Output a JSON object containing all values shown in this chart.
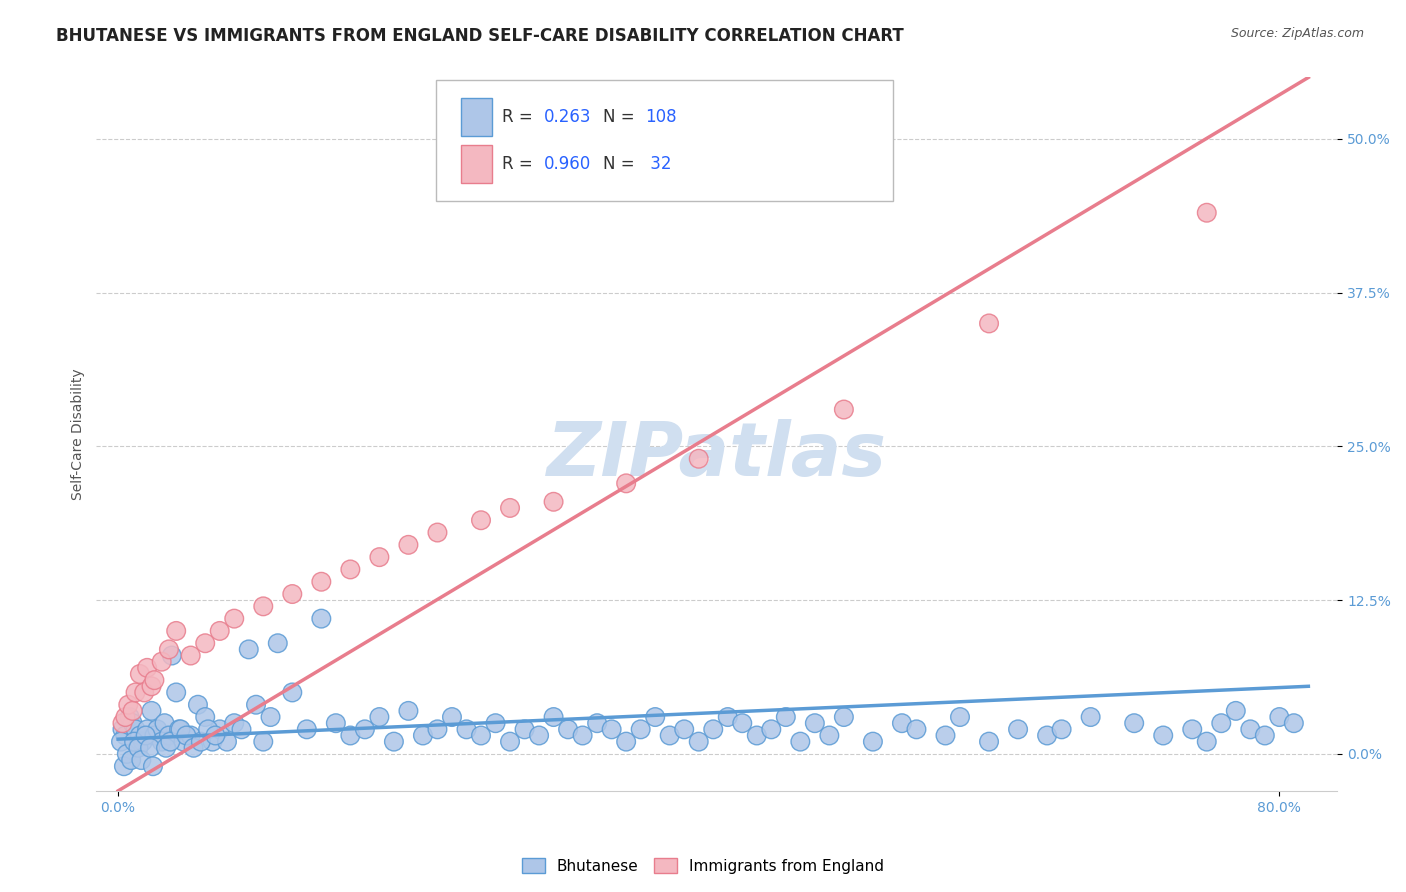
{
  "title": "BHUTANESE VS IMMIGRANTS FROM ENGLAND SELF-CARE DISABILITY CORRELATION CHART",
  "source": "Source: ZipAtlas.com",
  "ylabel": "Self-Care Disability",
  "ytick_labels": [
    "0.0%",
    "12.5%",
    "25.0%",
    "37.5%",
    "50.0%"
  ],
  "ytick_values": [
    0.0,
    12.5,
    25.0,
    37.5,
    50.0
  ],
  "xtick_labels": [
    "0.0%",
    "80.0%"
  ],
  "xtick_values": [
    0.0,
    80.0
  ],
  "xlim": [
    -1.5,
    84.0
  ],
  "ylim": [
    -3.0,
    55.0
  ],
  "blue_edge": "#5b9bd5",
  "pink_edge": "#e87d8d",
  "blue_fill": "#aec6e8",
  "pink_fill": "#f4b8c1",
  "grid_color": "#cccccc",
  "watermark": "ZIPatlas",
  "watermark_color": "#d0dff0",
  "title_fontsize": 12,
  "axis_label_fontsize": 10,
  "tick_fontsize": 10,
  "legend_R_color": "#333333",
  "legend_N_color": "#2962ff",
  "blue_scatter_x": [
    0.3,
    0.5,
    0.8,
    1.0,
    1.2,
    1.5,
    1.7,
    2.0,
    2.3,
    2.5,
    2.7,
    3.0,
    3.2,
    3.5,
    3.7,
    4.0,
    4.2,
    4.5,
    5.0,
    5.5,
    6.0,
    6.5,
    7.0,
    7.5,
    8.0,
    8.5,
    9.0,
    9.5,
    10.0,
    10.5,
    11.0,
    12.0,
    13.0,
    14.0,
    15.0,
    16.0,
    17.0,
    18.0,
    19.0,
    20.0,
    21.0,
    22.0,
    23.0,
    24.0,
    25.0,
    26.0,
    27.0,
    28.0,
    29.0,
    30.0,
    31.0,
    32.0,
    33.0,
    34.0,
    35.0,
    36.0,
    37.0,
    38.0,
    39.0,
    40.0,
    41.0,
    42.0,
    43.0,
    44.0,
    45.0,
    46.0,
    47.0,
    48.0,
    49.0,
    50.0,
    52.0,
    54.0,
    55.0,
    57.0,
    58.0,
    60.0,
    62.0,
    64.0,
    65.0,
    67.0,
    70.0,
    72.0,
    74.0,
    75.0,
    76.0,
    77.0,
    78.0,
    79.0,
    80.0,
    81.0,
    0.2,
    0.4,
    0.6,
    0.9,
    1.1,
    1.4,
    1.6,
    1.9,
    2.2,
    2.4,
    3.3,
    3.6,
    4.3,
    4.7,
    5.2,
    5.7,
    6.2,
    6.7
  ],
  "blue_scatter_y": [
    2.0,
    1.5,
    3.0,
    2.5,
    2.0,
    1.5,
    1.0,
    2.0,
    3.5,
    1.5,
    2.0,
    1.0,
    2.5,
    1.5,
    8.0,
    5.0,
    2.0,
    1.0,
    1.5,
    4.0,
    3.0,
    1.0,
    2.0,
    1.0,
    2.5,
    2.0,
    8.5,
    4.0,
    1.0,
    3.0,
    9.0,
    5.0,
    2.0,
    11.0,
    2.5,
    1.5,
    2.0,
    3.0,
    1.0,
    3.5,
    1.5,
    2.0,
    3.0,
    2.0,
    1.5,
    2.5,
    1.0,
    2.0,
    1.5,
    3.0,
    2.0,
    1.5,
    2.5,
    2.0,
    1.0,
    2.0,
    3.0,
    1.5,
    2.0,
    1.0,
    2.0,
    3.0,
    2.5,
    1.5,
    2.0,
    3.0,
    1.0,
    2.5,
    1.5,
    3.0,
    1.0,
    2.5,
    2.0,
    1.5,
    3.0,
    1.0,
    2.0,
    1.5,
    2.0,
    3.0,
    2.5,
    1.5,
    2.0,
    1.0,
    2.5,
    3.5,
    2.0,
    1.5,
    3.0,
    2.5,
    1.0,
    -1.0,
    0.0,
    -0.5,
    1.0,
    0.5,
    -0.5,
    1.5,
    0.5,
    -1.0,
    0.5,
    1.0,
    2.0,
    1.5,
    0.5,
    1.0,
    2.0,
    1.5
  ],
  "pink_scatter_x": [
    0.3,
    0.5,
    0.7,
    1.0,
    1.2,
    1.5,
    1.8,
    2.0,
    2.3,
    2.5,
    3.0,
    3.5,
    4.0,
    5.0,
    6.0,
    7.0,
    8.0,
    10.0,
    12.0,
    14.0,
    16.0,
    18.0,
    20.0,
    22.0,
    25.0,
    27.0,
    30.0,
    35.0,
    40.0,
    50.0,
    60.0,
    75.0
  ],
  "pink_scatter_y": [
    2.5,
    3.0,
    4.0,
    3.5,
    5.0,
    6.5,
    5.0,
    7.0,
    5.5,
    6.0,
    7.5,
    8.5,
    10.0,
    8.0,
    9.0,
    10.0,
    11.0,
    12.0,
    13.0,
    14.0,
    15.0,
    16.0,
    17.0,
    18.0,
    19.0,
    20.0,
    20.5,
    22.0,
    24.0,
    28.0,
    35.0,
    44.0
  ],
  "blue_line_x": [
    0.0,
    82.0
  ],
  "blue_line_y": [
    1.2,
    5.5
  ],
  "pink_line_x": [
    0.0,
    82.0
  ],
  "pink_line_y": [
    -3.0,
    55.0
  ]
}
